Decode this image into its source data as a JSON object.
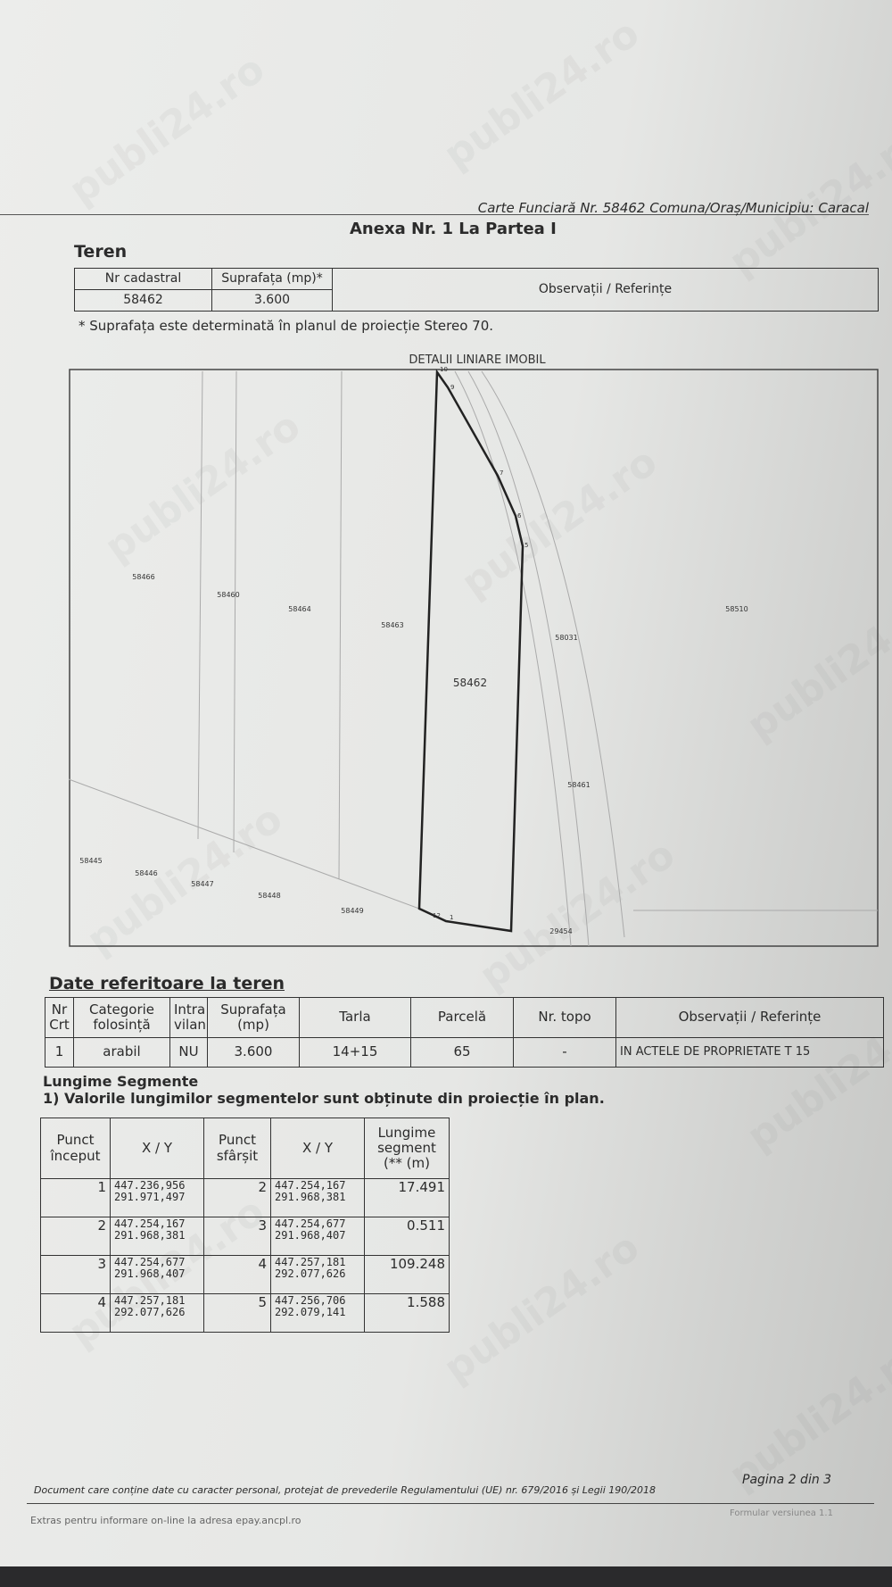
{
  "header": {
    "reference": "Carte Funciară Nr. 58462 Comuna/Oraș/Municipiu: Caracal",
    "title": "Anexa Nr. 1 La Partea I"
  },
  "teren": {
    "heading": "Teren",
    "columns": [
      "Nr cadastral",
      "Suprafața (mp)*",
      "Observații / Referințe"
    ],
    "rows": [
      [
        "58462",
        "3.600"
      ]
    ]
  },
  "note": "* Suprafața este determinată în planul de proiecție Stereo 70.",
  "plan": {
    "title": "DETALII LINIARE IMOBIL",
    "parcels": [
      "58466",
      "58460",
      "58464",
      "58463",
      "58462",
      "58031",
      "58510",
      "58461",
      "58445",
      "58446",
      "58447",
      "58448",
      "58449",
      "29454"
    ],
    "points": [
      "10",
      "9",
      "7",
      "6",
      "5",
      "12",
      "1"
    ]
  },
  "date_teren": {
    "heading": "Date referitoare la teren",
    "columns": [
      "Nr Crt",
      "Categorie folosință",
      "Intra vilan",
      "Suprafața (mp)",
      "Tarla",
      "Parcelă",
      "Nr. topo",
      "Observații / Referințe"
    ],
    "rows": [
      [
        "1",
        "arabil",
        "NU",
        "3.600",
        "14+15",
        "65",
        "-",
        "IN ACTELE DE PROPRIETATE T 15"
      ]
    ]
  },
  "segmente": {
    "heading": "Lungime Segmente",
    "note": "1) Valorile lungimilor segmentelor sunt obținute din proiecție în plan.",
    "columns": [
      "Punct început",
      "X / Y",
      "Punct sfârșit",
      "X / Y",
      "Lungime segment (** (m)"
    ],
    "rows": [
      [
        "1",
        [
          "447.236,956",
          "291.971,497"
        ],
        "2",
        [
          "447.254,167",
          "291.968,381"
        ],
        "17.491"
      ],
      [
        "2",
        [
          "447.254,167",
          "291.968,381"
        ],
        "3",
        [
          "447.254,677",
          "291.968,407"
        ],
        "0.511"
      ],
      [
        "3",
        [
          "447.254,677",
          "291.968,407"
        ],
        "4",
        [
          "447.257,181",
          "292.077,626"
        ],
        "109.248"
      ],
      [
        "4",
        [
          "447.257,181",
          "292.077,626"
        ],
        "5",
        [
          "447.256,706",
          "292.079,141"
        ],
        "1.588"
      ]
    ]
  },
  "footer": {
    "disclaimer": "Document care conține date cu caracter personal, protejat de prevederile Regulamentului (UE) nr. 679/2016 și Legii 190/2018",
    "page": "Pagina 2 din 3",
    "source": "Extras pentru informare on-line la adresa epay.ancpl.ro",
    "form": "Formular versiunea 1.1"
  },
  "watermark": "publi24.ro"
}
